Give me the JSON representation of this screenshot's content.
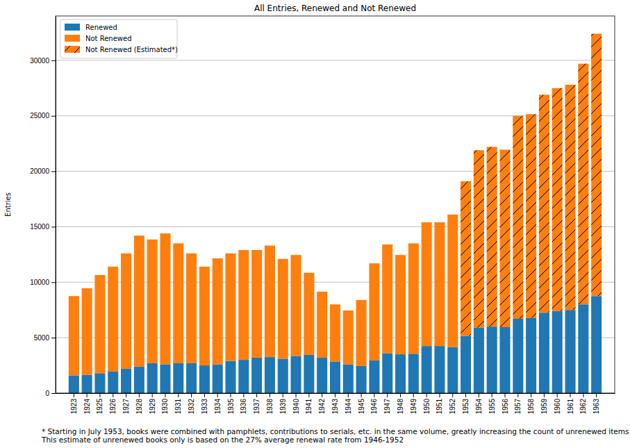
{
  "chart_data": {
    "type": "bar",
    "title": "All Entries, Renewed and Not Renewed",
    "y_label": "Entries",
    "annotations": [
      "* Starting in July 1953, books were combined with pamphlets, contributions to serials, etc. in the same volume, greatly increasing the count of unrenewed items.",
      "This estimate of unrenewed books only is based on the 27% average renewal rate from 1946-1952"
    ],
    "categories": [
      "1923",
      "1924",
      "1925",
      "1926",
      "1927",
      "1928",
      "1929",
      "1930",
      "1931",
      "1932",
      "1933",
      "1934",
      "1935",
      "1936",
      "1937",
      "1938",
      "1939",
      "1940",
      "1941",
      "1942",
      "1943",
      "1944",
      "1945",
      "1946",
      "1947",
      "1948",
      "1949",
      "1950",
      "1951",
      "1952",
      "1953",
      "1954",
      "1955",
      "1956",
      "1957",
      "1958",
      "1959",
      "1960",
      "1961",
      "1962",
      "1963"
    ],
    "series": [
      {
        "name": "Renewed",
        "color": "#1f77b4",
        "values": [
          1600,
          1650,
          1800,
          1950,
          2200,
          2400,
          2700,
          2600,
          2700,
          2700,
          2500,
          2600,
          2900,
          3000,
          3200,
          3250,
          3100,
          3350,
          3450,
          3200,
          2850,
          2600,
          2450,
          2950,
          3600,
          3500,
          3550,
          4250,
          4250,
          4150,
          5150,
          5900,
          6000,
          5950,
          6700,
          6800,
          7250,
          7400,
          7500,
          8000,
          8750
        ]
      },
      {
        "name": "Not Renewed",
        "color": "#ff7f0e",
        "values": [
          7150,
          7800,
          8850,
          9450,
          10400,
          11800,
          11150,
          11800,
          10800,
          9900,
          8900,
          9550,
          9700,
          9900,
          9700,
          10050,
          9000,
          9100,
          7400,
          5950,
          5150,
          4850,
          5950,
          8750,
          9800,
          8950,
          9950,
          11150,
          11150,
          11950,
          null,
          null,
          null,
          null,
          null,
          null,
          null,
          null,
          null,
          null,
          null
        ]
      },
      {
        "name": "Not Renewed (Estimated*)",
        "color": "#ff7f0e",
        "line_style": "hatched",
        "values": [
          null,
          null,
          null,
          null,
          null,
          null,
          null,
          null,
          null,
          null,
          null,
          null,
          null,
          null,
          null,
          null,
          null,
          null,
          null,
          null,
          null,
          null,
          null,
          null,
          null,
          null,
          null,
          null,
          null,
          null,
          13950,
          16000,
          16200,
          16000,
          18300,
          18350,
          19650,
          20100,
          20300,
          21700,
          23650
        ]
      }
    ],
    "stacked": true,
    "ylim": [
      0,
      34000
    ],
    "yticks": [
      0,
      5000,
      10000,
      15000,
      20000,
      25000,
      30000
    ],
    "grid": true,
    "legend": "upper left"
  }
}
